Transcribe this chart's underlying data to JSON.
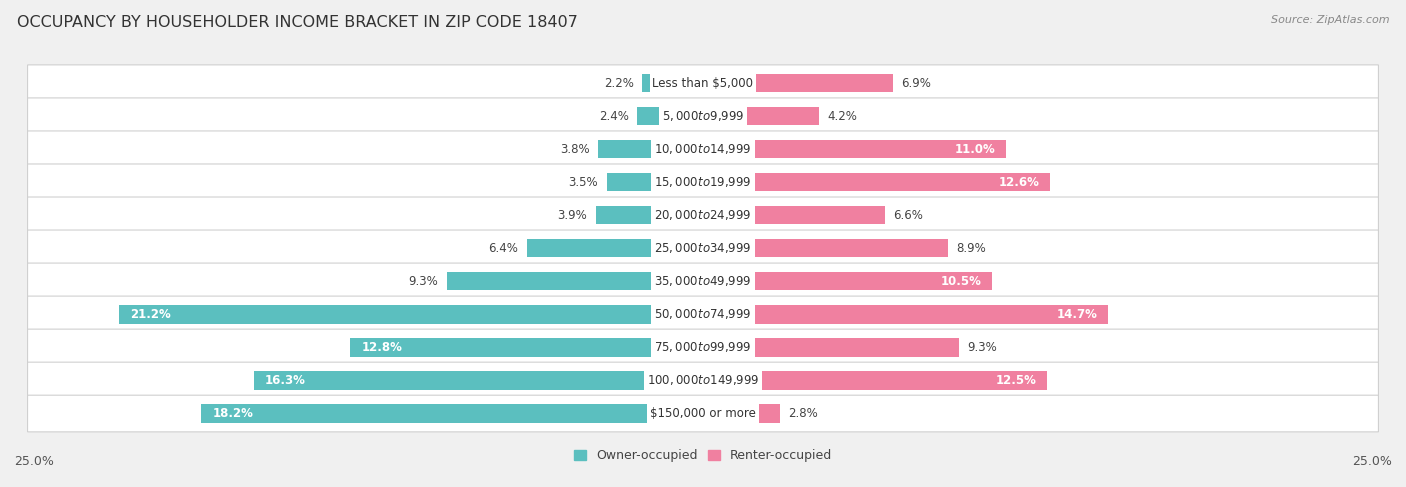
{
  "title": "OCCUPANCY BY HOUSEHOLDER INCOME BRACKET IN ZIP CODE 18407",
  "source": "Source: ZipAtlas.com",
  "categories": [
    "Less than $5,000",
    "$5,000 to $9,999",
    "$10,000 to $14,999",
    "$15,000 to $19,999",
    "$20,000 to $24,999",
    "$25,000 to $34,999",
    "$35,000 to $49,999",
    "$50,000 to $74,999",
    "$75,000 to $99,999",
    "$100,000 to $149,999",
    "$150,000 or more"
  ],
  "owner_values": [
    2.2,
    2.4,
    3.8,
    3.5,
    3.9,
    6.4,
    9.3,
    21.2,
    12.8,
    16.3,
    18.2
  ],
  "renter_values": [
    6.9,
    4.2,
    11.0,
    12.6,
    6.6,
    8.9,
    10.5,
    14.7,
    9.3,
    12.5,
    2.8
  ],
  "owner_color": "#5BBFBF",
  "renter_color": "#F080A0",
  "owner_color_light": "#5BBFBF",
  "renter_color_light": "#F4A0B8",
  "bar_height": 0.55,
  "xlim": 25.0,
  "background_color": "#f0f0f0",
  "row_bg_color": "#ffffff",
  "row_border_color": "#d0d0d0",
  "title_fontsize": 11.5,
  "cat_fontsize": 8.5,
  "val_fontsize": 8.5,
  "source_fontsize": 8,
  "legend_fontsize": 9
}
